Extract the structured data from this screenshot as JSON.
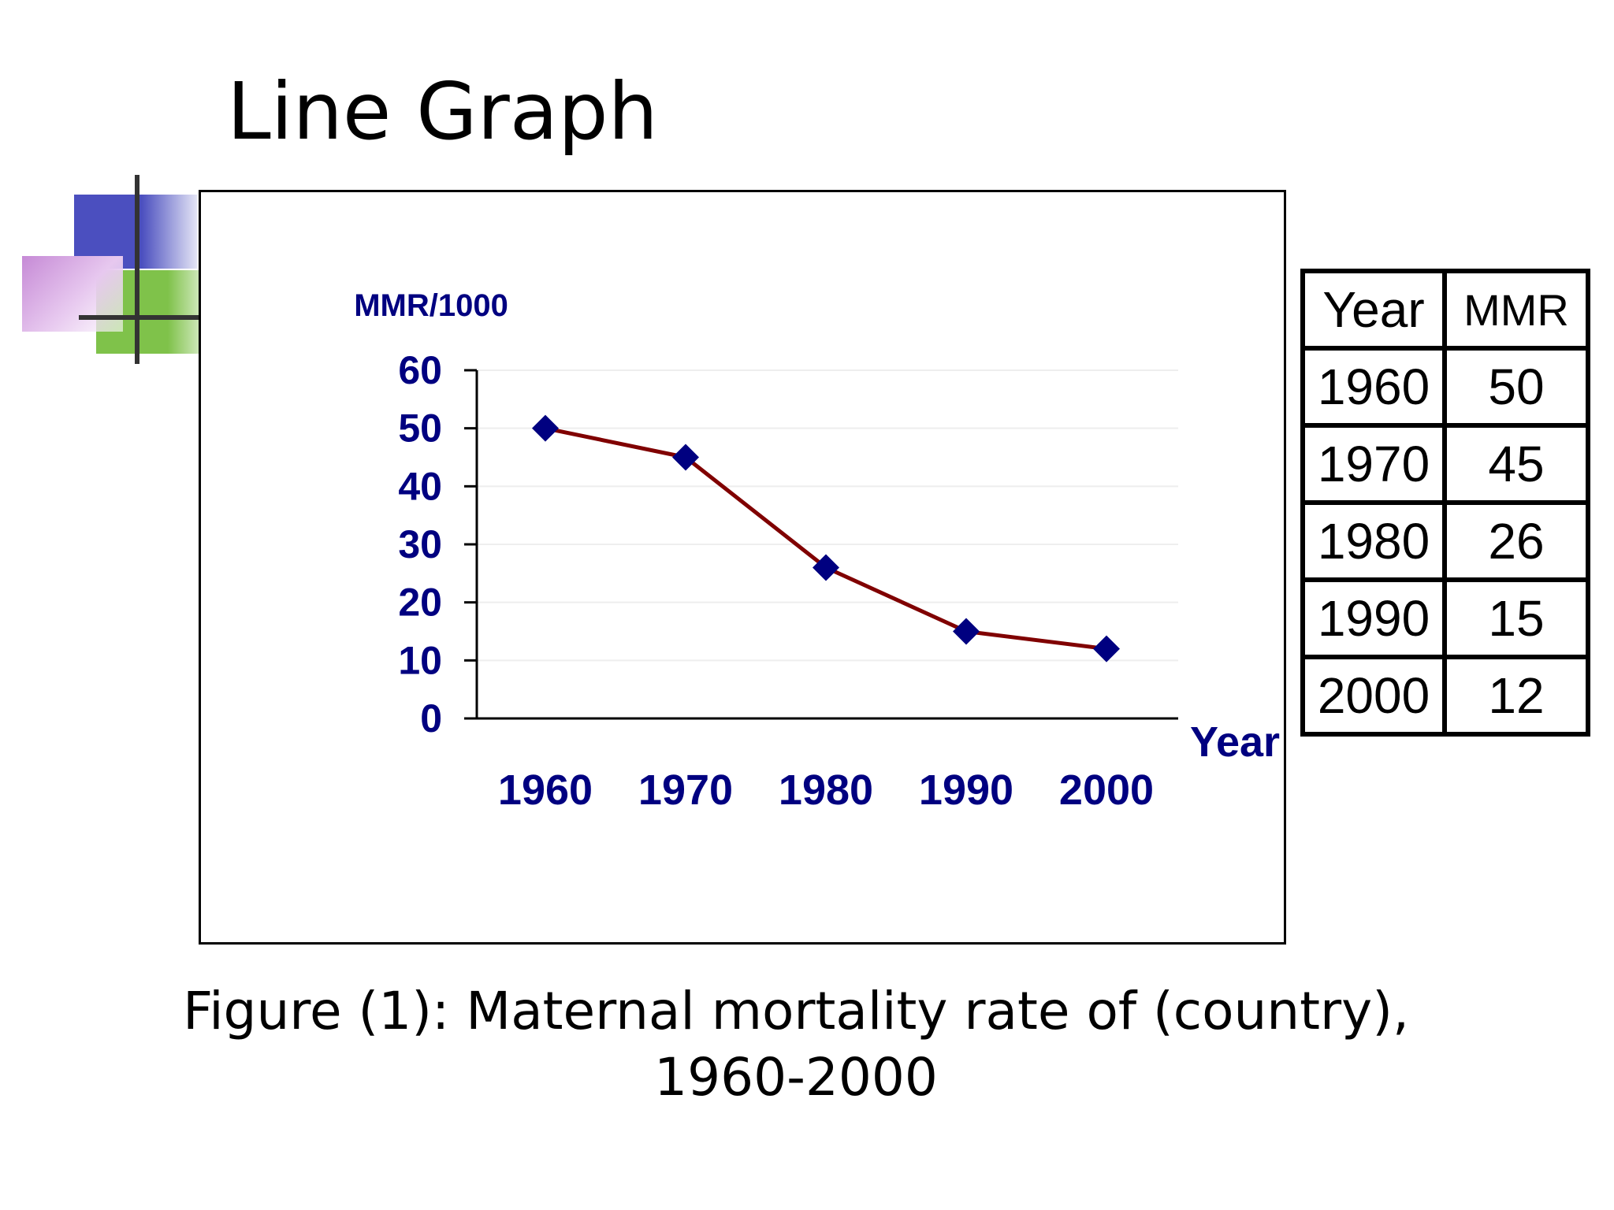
{
  "slide": {
    "title": "Line Graph",
    "caption_line1": "Figure (1): Maternal mortality rate of (country),",
    "caption_line2": "1960-2000"
  },
  "colors": {
    "axis_text": "#000080",
    "line": "#800000",
    "marker": "#000080",
    "frame": "#000000"
  },
  "chart_data": {
    "type": "line",
    "title": "",
    "xlabel": "Year",
    "ylabel": "MMR/1000",
    "categories": [
      "1960",
      "1970",
      "1980",
      "1990",
      "2000"
    ],
    "series": [
      {
        "values": [
          50,
          45,
          26,
          15,
          12
        ]
      }
    ],
    "ylim": [
      0,
      60
    ],
    "yticks": [
      0,
      10,
      20,
      30,
      40,
      50,
      60
    ],
    "grid": true,
    "legend": "none",
    "marker": "diamond"
  },
  "table": {
    "headers": [
      "Year",
      "MMR"
    ],
    "rows": [
      [
        "1960",
        "50"
      ],
      [
        "1970",
        "45"
      ],
      [
        "1980",
        "26"
      ],
      [
        "1990",
        "15"
      ],
      [
        "2000",
        "12"
      ]
    ]
  }
}
